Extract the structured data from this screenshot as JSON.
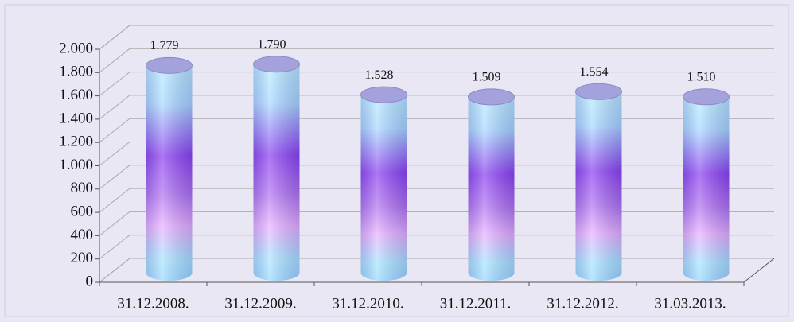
{
  "chart_data": {
    "type": "bar",
    "categories": [
      "31.12.2008.",
      "31.12.2009.",
      "31.12.2010.",
      "31.12.2011.",
      "31.12.2012.",
      "31.03.2013."
    ],
    "values": [
      1779,
      1790,
      1528,
      1509,
      1554,
      1510
    ],
    "value_labels": [
      "1.779",
      "1.790",
      "1.528",
      "1.509",
      "1.554",
      "1.510"
    ],
    "ylim": [
      0,
      2000
    ],
    "yticks": [
      0,
      200,
      400,
      600,
      800,
      {
        "value": 1000,
        "label": "1.000"
      },
      {
        "value": 1200,
        "label": "1.200"
      },
      {
        "value": 1400,
        "label": "1.400"
      },
      {
        "value": 1600,
        "label": "1.600"
      },
      {
        "value": 1800,
        "label": "1.800"
      },
      {
        "value": 2000,
        "label": "2.000"
      }
    ],
    "grid": true
  }
}
